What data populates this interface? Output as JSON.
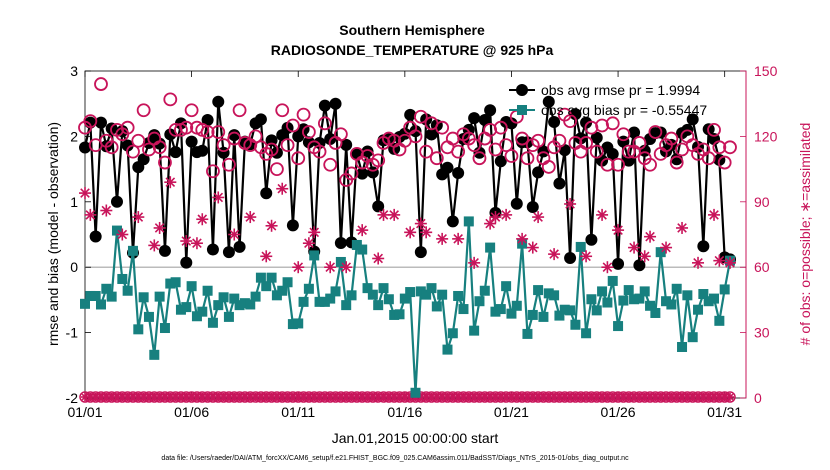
{
  "title_line1": "Southern Hemisphere",
  "title_line2": "RADIOSONDE_TEMPERATURE @ 925 hPa",
  "left_axis_label": "rmse and bias (model - observation)",
  "right_axis_label": "# of obs: o=possible; ∗=assimilated",
  "x_axis_label": "Jan.01,2015 00:00:00 start",
  "footer": "data file: /Users/raeder/DAI/ATM_forcXX/CAM6_setup/f.e21.FHIST_BGC.f09_025.CAM6assim.011/BadSST/Diags_NTrS_2015-01/obs_diag_output.nc",
  "legend": {
    "rmse": "obs avg rmse pr = 1.9994",
    "bias": "obs avg bias pr = -0.55447"
  },
  "colors": {
    "rmse": "#000000",
    "bias": "#17807f",
    "obs": "#c8145a",
    "zero_line": "#bbbbbb"
  },
  "chart_data": {
    "type": "line",
    "x_unit": "day of January 2015 (1 = Jan.01 00:00)",
    "x_tick_values": [
      1,
      6,
      11,
      16,
      21,
      26,
      31
    ],
    "x_tick_labels": [
      "01/01",
      "01/06",
      "01/11",
      "01/16",
      "01/21",
      "01/26",
      "01/31"
    ],
    "xlim": [
      1,
      32
    ],
    "left_ylim": [
      -2,
      3
    ],
    "left_ticks": [
      -2,
      -1,
      0,
      1,
      2,
      3
    ],
    "right_ylim": [
      0,
      150
    ],
    "right_ticks": [
      0,
      30,
      60,
      90,
      120,
      150
    ],
    "series_x": [
      1.0,
      1.25,
      1.5,
      1.75,
      2.0,
      2.25,
      2.5,
      2.75,
      3.0,
      3.25,
      3.5,
      3.75,
      4.0,
      4.25,
      4.5,
      4.75,
      5.0,
      5.25,
      5.5,
      5.75,
      6.0,
      6.25,
      6.5,
      6.75,
      7.0,
      7.25,
      7.5,
      7.75,
      8.0,
      8.25,
      8.5,
      8.75,
      9.0,
      9.25,
      9.5,
      9.75,
      10.0,
      10.25,
      10.5,
      10.75,
      11.0,
      11.25,
      11.5,
      11.75,
      12.0,
      12.25,
      12.5,
      12.75,
      13.0,
      13.25,
      13.5,
      13.75,
      14.0,
      14.25,
      14.5,
      14.75,
      15.0,
      15.25,
      15.5,
      15.75,
      16.0,
      16.25,
      16.5,
      16.75,
      17.0,
      17.25,
      17.5,
      17.75,
      18.0,
      18.25,
      18.5,
      18.75,
      19.0,
      19.25,
      19.5,
      19.75,
      20.0,
      20.25,
      20.5,
      20.75,
      21.0,
      21.25,
      21.5,
      21.75,
      22.0,
      22.25,
      22.5,
      22.75,
      23.0,
      23.25,
      23.5,
      23.75,
      24.0,
      24.25,
      24.5,
      24.75,
      25.0,
      25.25,
      25.5,
      25.75,
      26.0,
      26.25,
      26.5,
      26.75,
      27.0,
      27.25,
      27.5,
      27.75,
      28.0,
      28.25,
      28.5,
      28.75,
      29.0,
      29.25,
      29.5,
      29.75,
      30.0,
      30.25,
      30.5,
      30.75,
      31.0,
      31.25
    ],
    "series": [
      {
        "name": "obs avg rmse pr = 1.9994",
        "axis": "left",
        "values": [
          1.83,
          2.21,
          0.47,
          2.21,
          1.85,
          2.12,
          1.0,
          2.08,
          1.86,
          0.22,
          1.53,
          1.65,
          1.9,
          2.02,
          1.89,
          0.25,
          2.03,
          1.76,
          2.2,
          0.07,
          1.92,
          1.76,
          1.78,
          2.25,
          0.27,
          2.53,
          1.75,
          0.23,
          2.02,
          0.31,
          1.92,
          1.88,
          2.2,
          2.26,
          1.13,
          1.94,
          1.75,
          2.02,
          2.13,
          0.64,
          2.0,
          2.11,
          1.91,
          0.24,
          1.9,
          2.47,
          1.96,
          2.5,
          0.37,
          1.87,
          0.38,
          1.73,
          1.43,
          1.77,
          1.45,
          0.93,
          1.94,
          1.97,
          1.81,
          1.99,
          2.04,
          2.33,
          2.08,
          0.23,
          2.26,
          2.03,
          2.17,
          1.42,
          1.52,
          0.7,
          1.44,
          1.96,
          2.1,
          2.28,
          1.75,
          2.25,
          2.4,
          0.83,
          1.62,
          2.22,
          2.2,
          0.97,
          1.91,
          1.91,
          0.92,
          1.45,
          1.77,
          2.53,
          2.22,
          1.28,
          1.79,
          0.14,
          2.34,
          1.97,
          2.21,
          0.42,
          1.98,
          1.63,
          1.83,
          1.73,
          0.05,
          1.92,
          1.63,
          2.06,
          0.03,
          1.78,
          1.96,
          2.05,
          2.06,
          1.77,
          1.87,
          1.65,
          2.05,
          2.1,
          2.26,
          1.84,
          0.32,
          2.11,
          1.96,
          1.64,
          0.15,
          0.12
        ]
      },
      {
        "name": "obs avg bias pr = -0.55447",
        "axis": "left",
        "values": [
          -0.56,
          -0.44,
          -0.44,
          -0.57,
          -0.33,
          -0.45,
          0.56,
          -0.18,
          -0.36,
          0.25,
          -0.95,
          -0.46,
          -0.76,
          -1.34,
          -0.45,
          -0.93,
          -0.25,
          -0.23,
          -0.65,
          -0.61,
          -0.29,
          -0.75,
          -0.68,
          -0.36,
          -0.85,
          -0.58,
          -0.46,
          -0.76,
          -0.48,
          -0.58,
          -0.55,
          -0.57,
          -0.45,
          -0.16,
          -0.29,
          -0.16,
          -0.43,
          -0.36,
          -0.23,
          -0.87,
          -0.86,
          -0.53,
          -0.33,
          0.18,
          -0.53,
          -0.53,
          -0.48,
          -0.37,
          0.08,
          -0.58,
          -0.43,
          0.34,
          0.27,
          -0.32,
          -0.42,
          -0.58,
          -0.32,
          -0.49,
          -0.73,
          -0.72,
          -0.48,
          -0.38,
          -1.92,
          -0.37,
          -0.42,
          -0.32,
          -0.6,
          -0.42,
          -1.26,
          -1.01,
          -0.44,
          -0.64,
          0.7,
          -0.97,
          -0.52,
          -0.36,
          0.3,
          -0.68,
          -0.64,
          -0.29,
          -0.71,
          -0.59,
          0.36,
          -1.02,
          -0.73,
          -0.35,
          -0.76,
          -0.4,
          -0.43,
          -0.74,
          -0.65,
          -0.66,
          -0.88,
          0.31,
          -1.01,
          -0.49,
          -0.66,
          -0.37,
          -0.54,
          -0.21,
          -0.9,
          -0.51,
          -0.35,
          -0.49,
          -0.48,
          -0.37,
          -0.59,
          -0.7,
          0.23,
          -0.52,
          -0.57,
          -0.33,
          -1.22,
          -0.43,
          -1.07,
          -0.65,
          -0.41,
          -0.52,
          -0.48,
          -0.82,
          -0.34,
          0.1
        ]
      },
      {
        "name": "possible",
        "axis": "right",
        "marker": "o",
        "values": [
          124,
          127,
          116,
          144,
          118,
          115,
          123,
          121,
          124,
          113,
          118,
          132,
          114,
          119,
          115,
          108,
          137,
          123,
          123,
          124,
          132,
          124,
          123,
          122,
          104,
          122,
          116,
          107,
          119,
          132,
          117,
          116,
          120,
          115,
          112,
          114,
          105,
          132,
          116,
          125,
          110,
          130,
          122,
          115,
          113,
          126,
          107,
          117,
          121,
          100,
          103,
          112,
          108,
          111,
          107,
          109,
          117,
          119,
          118,
          114,
          118,
          124,
          120,
          129,
          113,
          126,
          110,
          124,
          115,
          119,
          113,
          121,
          119,
          116,
          110,
          119,
          123,
          114,
          124,
          116,
          111,
          129,
          119,
          110,
          116,
          118,
          110,
          106,
          115,
          118,
          130,
          127,
          117,
          113,
          117,
          124,
          113,
          125,
          107,
          126,
          107,
          121,
          113,
          113,
          117,
          110,
          107,
          122,
          112,
          116,
          119,
          108,
          114,
          120,
          116,
          112,
          114,
          110,
          123,
          115,
          108,
          115
        ]
      }
    ]
  }
}
